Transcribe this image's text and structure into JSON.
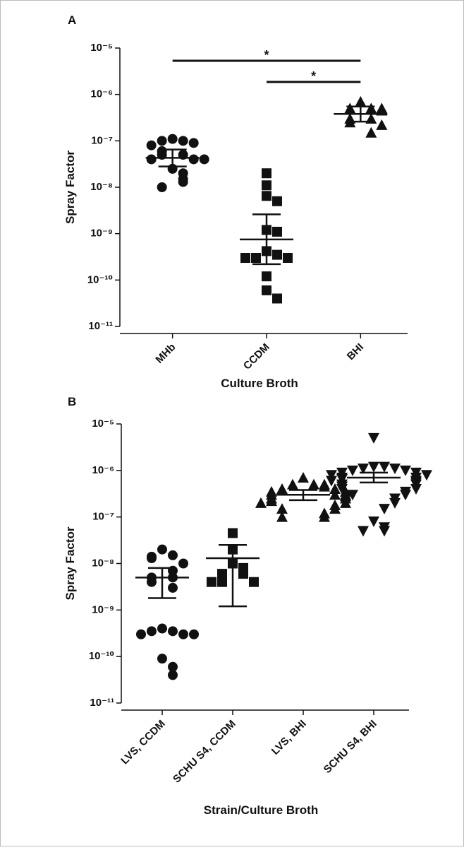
{
  "chart_data": [
    {
      "type": "dot",
      "panel": "A",
      "y_label": "Spray Factor",
      "x_label": "Culture Broth",
      "log_y": true,
      "categories": [
        "MHb",
        "CCDM",
        "BHI"
      ],
      "markers": [
        "circle",
        "square",
        "triangle"
      ],
      "color": "#111111",
      "points": [
        [
          1.1e-07,
          1e-07,
          1e-07,
          9e-08,
          8e-08,
          6e-08,
          5e-08,
          5e-08,
          4e-08,
          4e-08,
          4e-08,
          2.5e-08,
          2e-08,
          1.5e-08,
          1.3e-08,
          1e-08
        ],
        [
          2e-08,
          1.1e-08,
          6.5e-09,
          5e-09,
          1.2e-09,
          1.1e-09,
          4.2e-10,
          3.5e-10,
          3e-10,
          3e-10,
          3e-10,
          1.2e-10,
          6e-11,
          4e-11
        ],
        [
          7e-07,
          5e-07,
          5e-07,
          5e-07,
          4.5e-07,
          3e-07,
          3e-07,
          2.5e-07,
          2.2e-07,
          1.5e-07
        ]
      ],
      "mean": [
        4.3e-08,
        7.5e-10,
        3.8e-07
      ],
      "upper": [
        6.5e-08,
        2.6e-09,
        5.5e-07
      ],
      "lower": [
        2.8e-08,
        2.2e-10,
        2.6e-07
      ],
      "significance": [
        {
          "between": [
            "MHb",
            "BHI"
          ],
          "label": "*"
        },
        {
          "between": [
            "CCDM",
            "BHI"
          ],
          "label": "*"
        }
      ],
      "ylim": [
        1e-11,
        1e-05
      ],
      "yticks": [
        {
          "value": 1e-11,
          "label": "10⁻¹¹"
        },
        {
          "value": 1e-10,
          "label": "10⁻¹⁰"
        },
        {
          "value": 1e-09,
          "label": "10⁻⁹"
        },
        {
          "value": 1e-08,
          "label": "10⁻⁸"
        },
        {
          "value": 1e-07,
          "label": "10⁻⁷"
        },
        {
          "value": 1e-06,
          "label": "10⁻⁶"
        },
        {
          "value": 1e-05,
          "label": "10⁻⁵"
        }
      ]
    },
    {
      "type": "dot",
      "panel": "B",
      "y_label": "Spray Factor",
      "x_label": "Strain/Culture Broth",
      "log_y": true,
      "categories": [
        "LVS, CCDM",
        "SCHU S4, CCDM",
        "LVS, BHI",
        "SCHU S4, BHI"
      ],
      "markers": [
        "circle",
        "square",
        "triangle",
        "triangle-down"
      ],
      "color": "#111111",
      "points": [
        [
          2e-08,
          1.5e-08,
          1.4e-08,
          1.3e-08,
          1e-08,
          7e-09,
          5e-09,
          5e-09,
          4e-09,
          3e-09,
          4e-10,
          3.5e-10,
          3.5e-10,
          3e-10,
          3e-10,
          3e-10,
          9e-11,
          6e-11,
          4e-11
        ],
        [
          4.5e-08,
          2e-08,
          1e-08,
          8e-09,
          6e-09,
          6e-09,
          4e-09,
          4e-09,
          4e-09
        ],
        [
          7e-07,
          5e-07,
          5e-07,
          5e-07,
          4.5e-07,
          4e-07,
          4e-07,
          3.5e-07,
          3.5e-07,
          3e-07,
          3e-07,
          3e-07,
          2.8e-07,
          2.5e-07,
          2.5e-07,
          2.2e-07,
          2e-07,
          2e-07,
          1.8e-07,
          1.5e-07,
          1.5e-07,
          1.2e-07,
          1e-07,
          1e-07
        ],
        [
          5e-06,
          1.2e-06,
          1.2e-06,
          1.1e-06,
          1.1e-06,
          1e-06,
          1e-06,
          9e-07,
          9e-07,
          8e-07,
          8e-07,
          7e-07,
          7e-07,
          6.5e-07,
          6e-07,
          6e-07,
          5.5e-07,
          5e-07,
          5e-07,
          4.5e-07,
          4e-07,
          4e-07,
          3.5e-07,
          3e-07,
          3e-07,
          2.5e-07,
          2e-07,
          1.5e-07,
          8e-08,
          6e-08,
          5e-08,
          5e-08
        ]
      ],
      "mean": [
        5e-09,
        1.3e-08,
        3e-07,
        7e-07
      ],
      "upper": [
        8e-09,
        2.5e-08,
        3.8e-07,
        9e-07
      ],
      "lower": [
        1.8e-09,
        1.2e-09,
        2.3e-07,
        5.5e-07
      ],
      "ylim": [
        1e-11,
        1e-05
      ],
      "yticks": [
        {
          "value": 1e-11,
          "label": "10⁻¹¹"
        },
        {
          "value": 1e-10,
          "label": "10⁻¹⁰"
        },
        {
          "value": 1e-09,
          "label": "10⁻⁹"
        },
        {
          "value": 1e-08,
          "label": "10⁻⁸"
        },
        {
          "value": 1e-07,
          "label": "10⁻⁷"
        },
        {
          "value": 1e-06,
          "label": "10⁻⁶"
        },
        {
          "value": 1e-05,
          "label": "10⁻⁵"
        }
      ]
    }
  ]
}
